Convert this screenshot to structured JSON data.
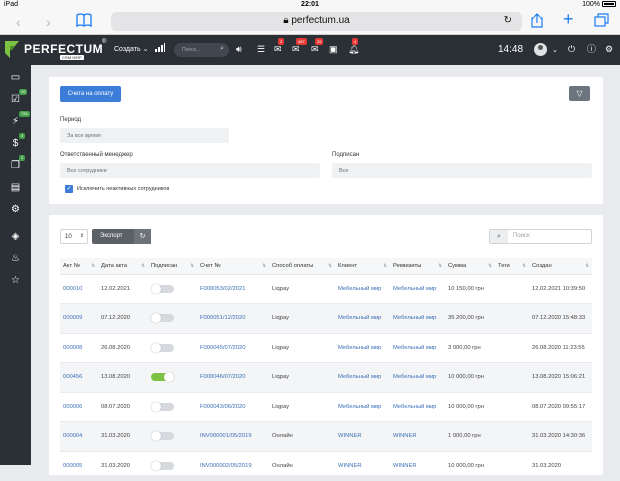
{
  "status_bar": {
    "device": "iPad",
    "time": "22:01",
    "battery": "100%"
  },
  "browser": {
    "url": "perfectum.ua",
    "lock_icon": "lock-icon"
  },
  "topbar": {
    "brand": "PERFECTUM",
    "brand_sub": "CRM+ERP",
    "brand_reg": "®",
    "create_label": "Создать",
    "search_placeholder": "Поиск...",
    "badges": {
      "chat": "2",
      "tasks": "487",
      "mail": "25",
      "events": "4"
    },
    "time": "14:48"
  },
  "sidebar": {
    "badges": {
      "tasks": "26",
      "deals": "795",
      "payments": "4",
      "docs": "2"
    }
  },
  "filter": {
    "button_label": "Счета на оплату",
    "period_label": "Период",
    "period_value": "За все время",
    "manager_label": "Ответственный менеджер",
    "manager_value": "Все сотрудники",
    "signed_label": "Подписан",
    "signed_value": "Все",
    "exclude_label": "Исключить неактивных сотрудников"
  },
  "toolbar": {
    "page_size": "10",
    "export_label": "Экспорт",
    "search_placeholder": "Поиск"
  },
  "table": {
    "headers": [
      "Акт №",
      "Дата акта",
      "Подписан",
      "Счет №",
      "Способ оплаты",
      "Клиент",
      "Реквизиты",
      "Сумма",
      "Теги",
      "Создан"
    ],
    "rows": [
      {
        "act": "000010",
        "date": "12.02.2021",
        "signed": false,
        "invoice": "F000053/02/2021",
        "method": "Liqpay",
        "client": "Мебельный мир",
        "requisites": "Мебельный мир",
        "sum": "10 150,00 грн",
        "tags": "",
        "created": "12.02.2021 10:39:50"
      },
      {
        "act": "000009",
        "date": "07.12.2020",
        "signed": false,
        "invoice": "F000051/12/2020",
        "method": "Liqpay",
        "client": "Мебельный мир",
        "requisites": "Мебельный мир",
        "sum": "35 200,00 грн",
        "tags": "",
        "created": "07.12.2020 15:48:33"
      },
      {
        "act": "000008",
        "date": "26.08.2020",
        "signed": false,
        "invoice": "F000045/07/2020",
        "method": "Liqpay",
        "client": "Мебельный мир",
        "requisites": "Мебельный мир",
        "sum": "3 000,00 грн",
        "tags": "",
        "created": "26.08.2020 11:23:55"
      },
      {
        "act": "000456",
        "date": "13.08.2020",
        "signed": true,
        "invoice": "F000046/07/2020",
        "method": "Liqpay",
        "client": "Мебельный мир",
        "requisites": "Мебельный мир",
        "sum": "10 000,00 грн",
        "tags": "",
        "created": "13.08.2020 15:06:21"
      },
      {
        "act": "000006",
        "date": "08.07.2020",
        "signed": false,
        "invoice": "F000043/06/2020",
        "method": "Liqpay",
        "client": "Мебельный мир",
        "requisites": "Мебельный мир",
        "sum": "10 000,00 грн",
        "tags": "",
        "created": "08.07.2020 09:55:17"
      },
      {
        "act": "000004",
        "date": "31.03.2020",
        "signed": false,
        "invoice": "INV000001/05/2019",
        "method": "Онлайн",
        "client": "WINNER",
        "requisites": "WINNER",
        "sum": "1 000,00 грн",
        "tags": "",
        "created": "31.03.2020 14:30:36"
      },
      {
        "act": "000005",
        "date": "31.03.2020",
        "signed": false,
        "invoice": "INV000002/05/2019",
        "method": "Онлайн",
        "client": "WINNER",
        "requisites": "WINNER",
        "sum": "10 000,00 грн",
        "tags": "",
        "created": "31.03.2020"
      }
    ]
  }
}
